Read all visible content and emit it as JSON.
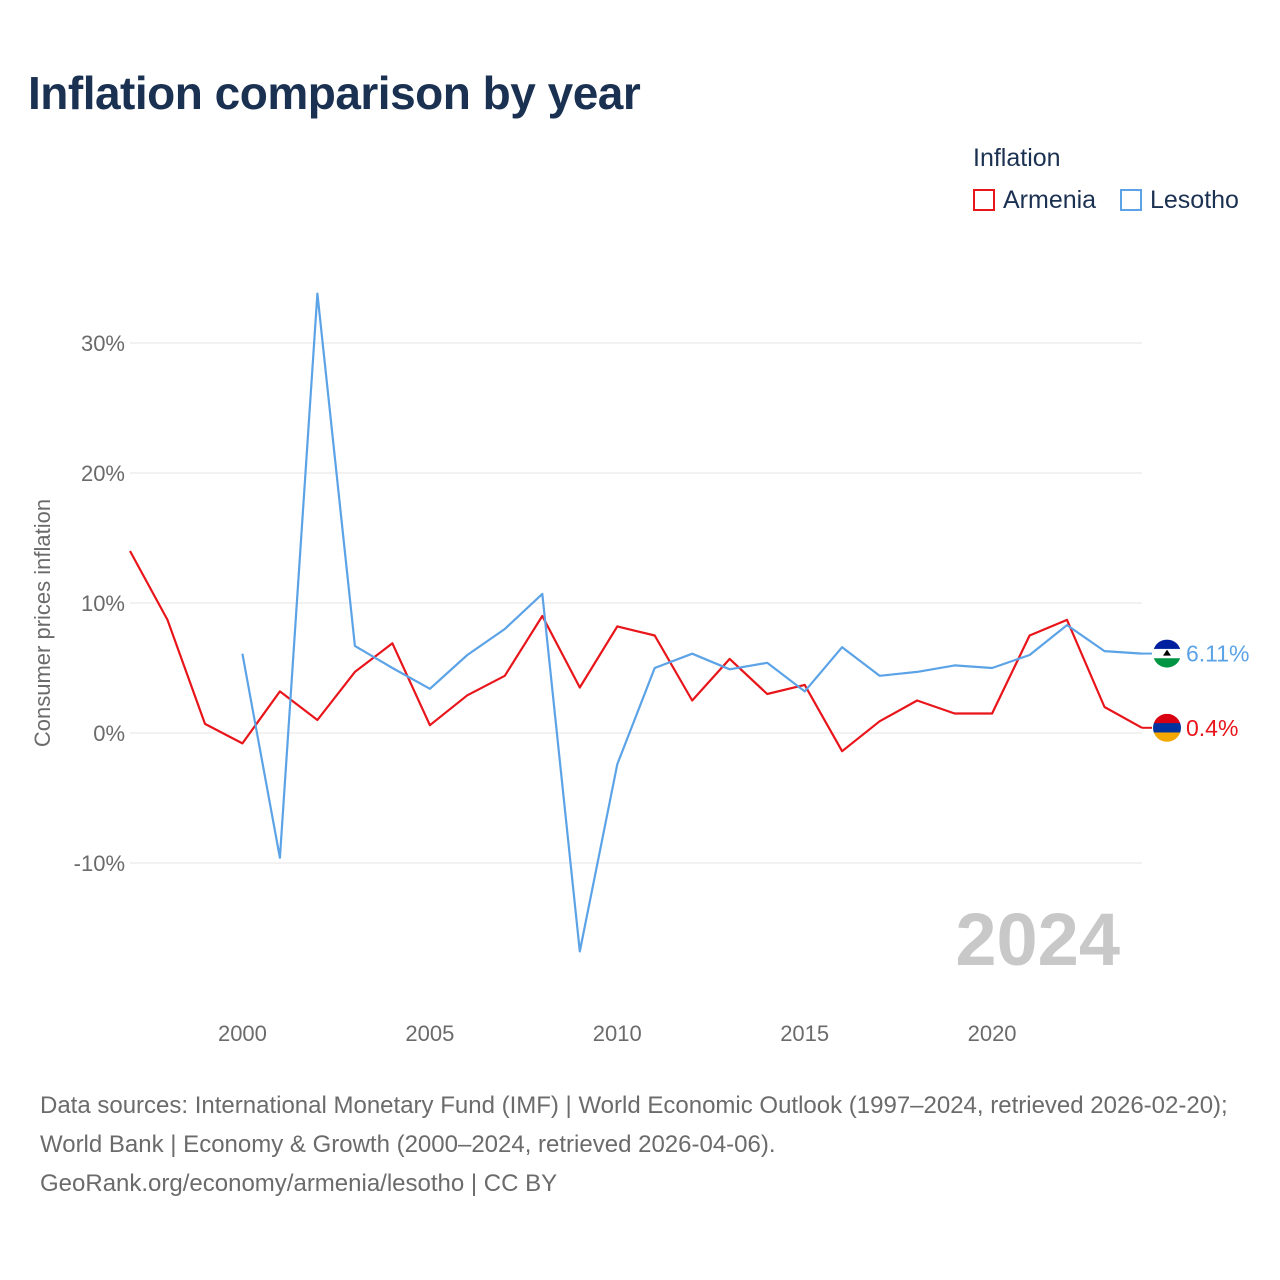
{
  "page": {
    "title": "Inflation comparison by year",
    "sources_line": "Data sources: International Monetary Fund (IMF) | World Economic Outlook (1997–2024, retrieved 2026-02-20); World Bank | Economy & Growth (2000–2024, retrieved 2026-04-06).",
    "credit_line": "GeoRank.org/economy/armenia/lesotho | CC BY"
  },
  "legend": {
    "title": "Inflation",
    "items": [
      {
        "label": "Armenia",
        "color": "#e8151b"
      },
      {
        "label": "Lesotho",
        "color": "#5ba3e6"
      }
    ]
  },
  "chart_data": {
    "type": "line",
    "title": "Inflation comparison by year",
    "ylabel": "Consumer prices inflation",
    "xlabel": "",
    "xlim": [
      1997,
      2024
    ],
    "ylim": [
      -18,
      35
    ],
    "x_ticks": [
      2000,
      2005,
      2010,
      2015,
      2020
    ],
    "x_tick_labels": [
      "2000",
      "2005",
      "2010",
      "2015",
      "2020"
    ],
    "y_ticks": [
      -10,
      0,
      10,
      20,
      30
    ],
    "y_tick_labels": [
      "-10%",
      "0%",
      "10%",
      "20%",
      "30%"
    ],
    "grid": true,
    "legend_position": "top-right",
    "year_watermark": "2024",
    "series": [
      {
        "name": "Armenia",
        "color": "#e8151b",
        "end_label": "0.4%",
        "flag_colors": [
          "#d90012",
          "#0033a0",
          "#f2a800"
        ],
        "x": [
          1997,
          1998,
          1999,
          2000,
          2001,
          2002,
          2003,
          2004,
          2005,
          2006,
          2007,
          2008,
          2009,
          2010,
          2011,
          2012,
          2013,
          2014,
          2015,
          2016,
          2017,
          2018,
          2019,
          2020,
          2021,
          2022,
          2023,
          2024
        ],
        "values": [
          14.0,
          8.7,
          0.7,
          -0.8,
          3.2,
          1.0,
          4.7,
          6.9,
          0.6,
          2.9,
          4.4,
          9.0,
          3.5,
          8.2,
          7.5,
          2.5,
          5.7,
          3.0,
          3.7,
          -1.4,
          0.9,
          2.5,
          1.5,
          1.5,
          7.5,
          8.7,
          2.0,
          0.4
        ]
      },
      {
        "name": "Lesotho",
        "color": "#5ba3e6",
        "end_label": "6.11%",
        "flag_colors": [
          "#00209f",
          "#ffffff",
          "#009543"
        ],
        "x": [
          2000,
          2001,
          2002,
          2003,
          2004,
          2005,
          2006,
          2007,
          2008,
          2009,
          2010,
          2011,
          2012,
          2013,
          2014,
          2015,
          2016,
          2017,
          2018,
          2019,
          2020,
          2021,
          2022,
          2023,
          2024
        ],
        "values": [
          6.1,
          -9.6,
          33.8,
          6.7,
          5.0,
          3.4,
          6.0,
          8.0,
          10.7,
          -16.8,
          -2.4,
          5.0,
          6.1,
          4.9,
          5.4,
          3.2,
          6.6,
          4.4,
          4.7,
          5.2,
          5.0,
          6.0,
          8.3,
          6.3,
          6.11
        ]
      }
    ]
  }
}
